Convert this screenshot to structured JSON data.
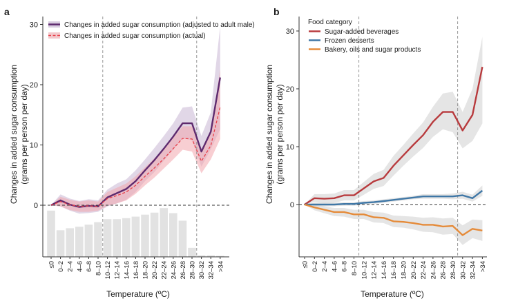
{
  "chart_data": [
    {
      "panel_label": "a",
      "type": "line",
      "xlabel": "Temperature (ºC)",
      "ylabel": [
        "Changes in added sugar consumption",
        "(grams per person per day)"
      ],
      "ylim": [
        -8,
        31
      ],
      "yticks": [
        0,
        10,
        20,
        30
      ],
      "categories": [
        "≤0",
        "0–2",
        "2–4",
        "4–6",
        "6–8",
        "8–10",
        "10–12",
        "12–14",
        "14–16",
        "16–18",
        "18–20",
        "20–22",
        "22–24",
        "24–26",
        "26–28",
        "28–30",
        "30–32",
        "32–34",
        ">34"
      ],
      "reference_lines_after_category": [
        "8–10",
        "28–30"
      ],
      "legend": [
        "Changes in added sugar consumption (adjusted to adult male)",
        "Changes in added sugar consumption (actual)"
      ],
      "series": [
        {
          "name": "Changes in added sugar consumption (adjusted to adult male)",
          "color": "#5e2a6e",
          "style": "solid",
          "values": [
            0,
            0.8,
            0.1,
            -0.3,
            -0.1,
            -0.2,
            1.3,
            2.0,
            2.7,
            4.0,
            5.8,
            7.5,
            9.4,
            11.4,
            13.6,
            13.6,
            8.9,
            12.2,
            21.2
          ],
          "ci_low": [
            0,
            -0.2,
            -0.9,
            -1.4,
            -1.3,
            -1.1,
            -0.2,
            0.3,
            0.9,
            2.2,
            4.0,
            5.5,
            7.4,
            9.2,
            11.1,
            10.8,
            6.4,
            9.3,
            12.6
          ],
          "ci_high": [
            0,
            1.8,
            1.1,
            0.7,
            1.0,
            0.8,
            2.6,
            3.6,
            4.3,
            5.8,
            7.6,
            9.5,
            11.5,
            13.6,
            16.2,
            16.4,
            11.5,
            15.4,
            29.7
          ]
        },
        {
          "name": "Changes in added sugar consumption (actual)",
          "color": "#e8404a",
          "style": "dashed",
          "values": [
            0,
            0.6,
            0.1,
            -0.2,
            -0.1,
            -0.2,
            1.1,
            1.6,
            2.2,
            3.3,
            4.8,
            6.2,
            7.7,
            9.4,
            11.1,
            11.0,
            7.3,
            9.9,
            16.3
          ],
          "ci_low": [
            0,
            -0.2,
            -0.8,
            -1.1,
            -1.1,
            -0.9,
            -0.1,
            0.3,
            0.8,
            1.9,
            3.3,
            4.6,
            6.1,
            7.6,
            9.2,
            8.9,
            5.3,
            7.6,
            11.0
          ],
          "ci_high": [
            0,
            1.4,
            0.9,
            0.6,
            0.8,
            0.6,
            2.2,
            2.9,
            3.6,
            4.8,
            6.3,
            7.8,
            9.3,
            11.2,
            13.1,
            13.1,
            9.3,
            12.3,
            22.5
          ]
        }
      ],
      "histogram_relative": [
        0.92,
        0.53,
        0.57,
        0.6,
        0.64,
        0.69,
        0.75,
        0.75,
        0.77,
        0.8,
        0.84,
        0.88,
        0.97,
        0.87,
        0.72,
        0.18,
        0.03,
        0.03,
        0.02
      ]
    },
    {
      "panel_label": "b",
      "type": "line",
      "xlabel": "Temperature (ºC)",
      "ylabel": [
        "Changes in added sugar consumption",
        "(grams per person per day)"
      ],
      "ylim": [
        -9,
        31
      ],
      "yticks": [
        0,
        10,
        20,
        30
      ],
      "categories": [
        "≤0",
        "0–2",
        "2–4",
        "4–6",
        "6–8",
        "8–10",
        "10–12",
        "12–14",
        "14–16",
        "16–18",
        "18–20",
        "20–22",
        "22–24",
        "24–26",
        "26–28",
        "28–30",
        "30–32",
        "32–34",
        ">34"
      ],
      "reference_lines_after_category": [
        "8–10",
        "28–30"
      ],
      "legend_title": "Food category",
      "legend": [
        "Sugar-added beverages",
        "Frozen desserts",
        "Bakery, oils and sugar products"
      ],
      "series": [
        {
          "name": "Sugar-added beverages",
          "color": "#b83a3d",
          "values": [
            0,
            1.1,
            1.0,
            1.1,
            1.6,
            1.6,
            2.8,
            4.0,
            4.6,
            6.7,
            8.5,
            10.3,
            12.0,
            14.3,
            16.0,
            16.0,
            12.8,
            15.5,
            23.8
          ],
          "ci_low": [
            0,
            0.4,
            0.2,
            0.3,
            0.7,
            0.7,
            1.7,
            2.7,
            3.2,
            5.0,
            6.7,
            8.3,
            9.8,
            11.7,
            13.0,
            12.5,
            9.7,
            11.0,
            14.0
          ],
          "ci_high": [
            0,
            1.8,
            1.8,
            1.9,
            2.5,
            2.5,
            3.9,
            5.3,
            6.0,
            8.4,
            10.3,
            12.3,
            14.2,
            16.9,
            19.2,
            19.5,
            16.0,
            20.0,
            29.0
          ]
        },
        {
          "name": "Frozen desserts",
          "color": "#3f77a6",
          "values": [
            0,
            0.0,
            0.0,
            0.0,
            0.1,
            0.1,
            0.3,
            0.4,
            0.6,
            0.8,
            1.0,
            1.2,
            1.4,
            1.4,
            1.4,
            1.4,
            1.6,
            1.1,
            2.4
          ],
          "ci_low": [
            0,
            -0.3,
            -0.3,
            -0.3,
            -0.2,
            -0.2,
            0.0,
            0.1,
            0.3,
            0.5,
            0.7,
            0.9,
            1.0,
            1.0,
            1.0,
            0.9,
            1.0,
            0.5,
            1.5
          ],
          "ci_high": [
            0,
            0.3,
            0.3,
            0.3,
            0.4,
            0.4,
            0.6,
            0.7,
            0.9,
            1.1,
            1.3,
            1.5,
            1.8,
            1.8,
            1.8,
            1.9,
            2.2,
            1.7,
            3.3
          ]
        },
        {
          "name": "Bakery, oils and sugar products",
          "color": "#e58b3a",
          "values": [
            0,
            -0.5,
            -0.9,
            -1.3,
            -1.3,
            -1.7,
            -1.7,
            -2.2,
            -2.3,
            -2.9,
            -3.0,
            -3.2,
            -3.5,
            -3.5,
            -3.8,
            -3.7,
            -5.3,
            -4.2,
            -4.5
          ],
          "ci_low": [
            0,
            -1.0,
            -1.5,
            -2.0,
            -2.1,
            -2.5,
            -2.5,
            -3.1,
            -3.2,
            -3.9,
            -4.0,
            -4.3,
            -4.7,
            -4.8,
            -5.2,
            -5.1,
            -7.0,
            -5.8,
            -6.3
          ],
          "ci_high": [
            0,
            0.0,
            -0.3,
            -0.6,
            -0.6,
            -0.9,
            -0.9,
            -1.3,
            -1.4,
            -1.9,
            -2.0,
            -2.1,
            -2.3,
            -2.2,
            -2.4,
            -2.3,
            -3.6,
            -2.6,
            -2.7
          ]
        }
      ]
    }
  ]
}
